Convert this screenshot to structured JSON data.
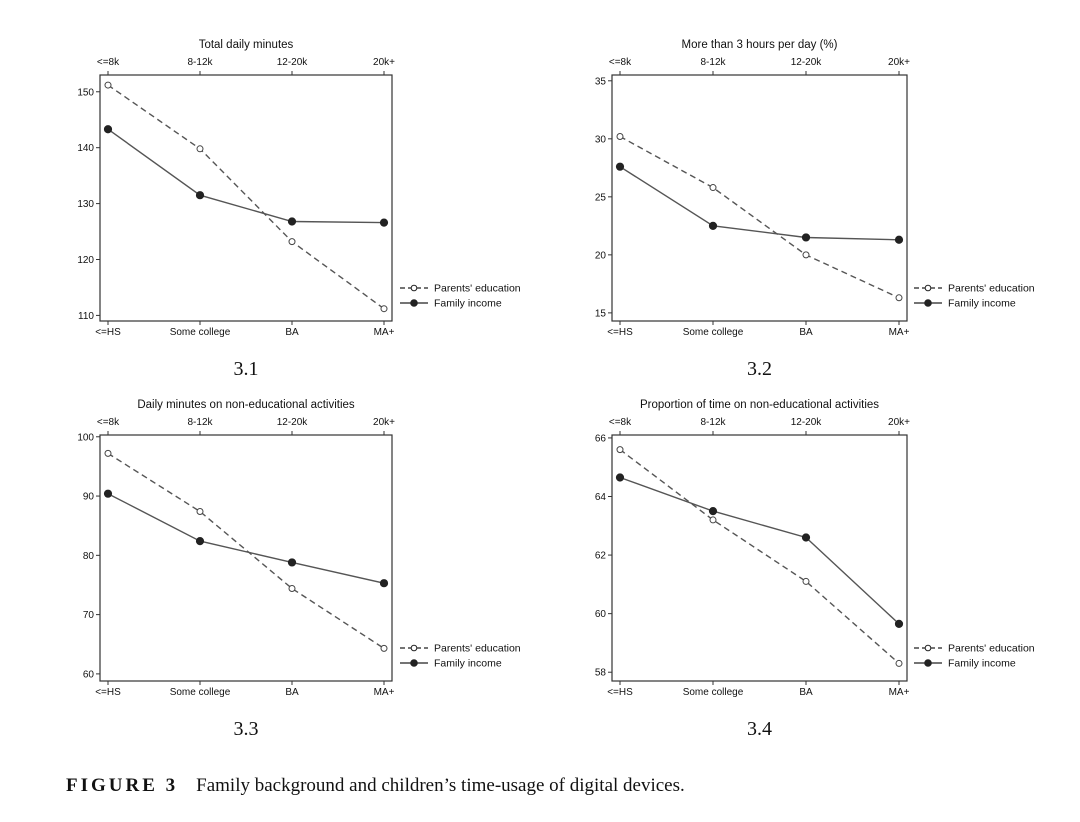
{
  "caption": {
    "label": "FIGURE 3",
    "text": "Family background and children’s time-usage of digital devices."
  },
  "colors": {
    "line": "#555555",
    "frame": "#333333",
    "text": "#111111"
  },
  "legend_entries": [
    "Parents' education",
    "Family income"
  ],
  "chart_data": [
    {
      "panel": "3.1",
      "type": "line",
      "title": "Total daily minutes",
      "categories_bottom": [
        "<=HS",
        "Some college",
        "BA",
        "MA+"
      ],
      "categories_top": [
        "<=8k",
        "8-12k",
        "12-20k",
        "20k+"
      ],
      "yticks": [
        110,
        120,
        130,
        140,
        150
      ],
      "ylim": [
        109,
        153
      ],
      "legend": "right",
      "grid": false,
      "series": [
        {
          "name": "Parents' education",
          "style": "dashed-hollow",
          "values": [
            151.2,
            139.8,
            123.2,
            111.2
          ]
        },
        {
          "name": "Family income",
          "style": "solid-filled",
          "values": [
            143.3,
            131.5,
            126.8,
            126.6
          ]
        }
      ]
    },
    {
      "panel": "3.2",
      "type": "line",
      "title": "More than 3 hours per day (%)",
      "categories_bottom": [
        "<=HS",
        "Some college",
        "BA",
        "MA+"
      ],
      "categories_top": [
        "<=8k",
        "8-12k",
        "12-20k",
        "20k+"
      ],
      "yticks": [
        15,
        20,
        25,
        30,
        35
      ],
      "ylim": [
        14.3,
        35.5
      ],
      "legend": "right",
      "grid": false,
      "series": [
        {
          "name": "Parents' education",
          "style": "dashed-hollow",
          "values": [
            30.2,
            25.8,
            20.0,
            16.3
          ]
        },
        {
          "name": "Family income",
          "style": "solid-filled",
          "values": [
            27.6,
            22.5,
            21.5,
            21.3
          ]
        }
      ]
    },
    {
      "panel": "3.3",
      "type": "line",
      "title": "Daily minutes on non-educational activities",
      "categories_bottom": [
        "<=HS",
        "Some college",
        "BA",
        "MA+"
      ],
      "categories_top": [
        "<=8k",
        "8-12k",
        "12-20k",
        "20k+"
      ],
      "yticks": [
        60,
        70,
        80,
        90,
        100
      ],
      "ylim": [
        58.8,
        100.3
      ],
      "legend": "right",
      "grid": false,
      "series": [
        {
          "name": "Parents' education",
          "style": "dashed-hollow",
          "values": [
            97.2,
            87.4,
            74.4,
            64.3
          ]
        },
        {
          "name": "Family income",
          "style": "solid-filled",
          "values": [
            90.4,
            82.4,
            78.8,
            75.3
          ]
        }
      ]
    },
    {
      "panel": "3.4",
      "type": "line",
      "title": "Proportion of time on non-educational activities",
      "categories_bottom": [
        "<=HS",
        "Some college",
        "BA",
        "MA+"
      ],
      "categories_top": [
        "<=8k",
        "8-12k",
        "12-20k",
        "20k+"
      ],
      "yticks": [
        58,
        60,
        62,
        64,
        66
      ],
      "ylim": [
        57.7,
        66.1
      ],
      "legend": "right",
      "grid": false,
      "series": [
        {
          "name": "Parents' education",
          "style": "dashed-hollow",
          "values": [
            65.6,
            63.2,
            61.1,
            58.3
          ]
        },
        {
          "name": "Family income",
          "style": "solid-filled",
          "values": [
            64.65,
            63.5,
            62.6,
            59.65
          ]
        }
      ]
    }
  ]
}
